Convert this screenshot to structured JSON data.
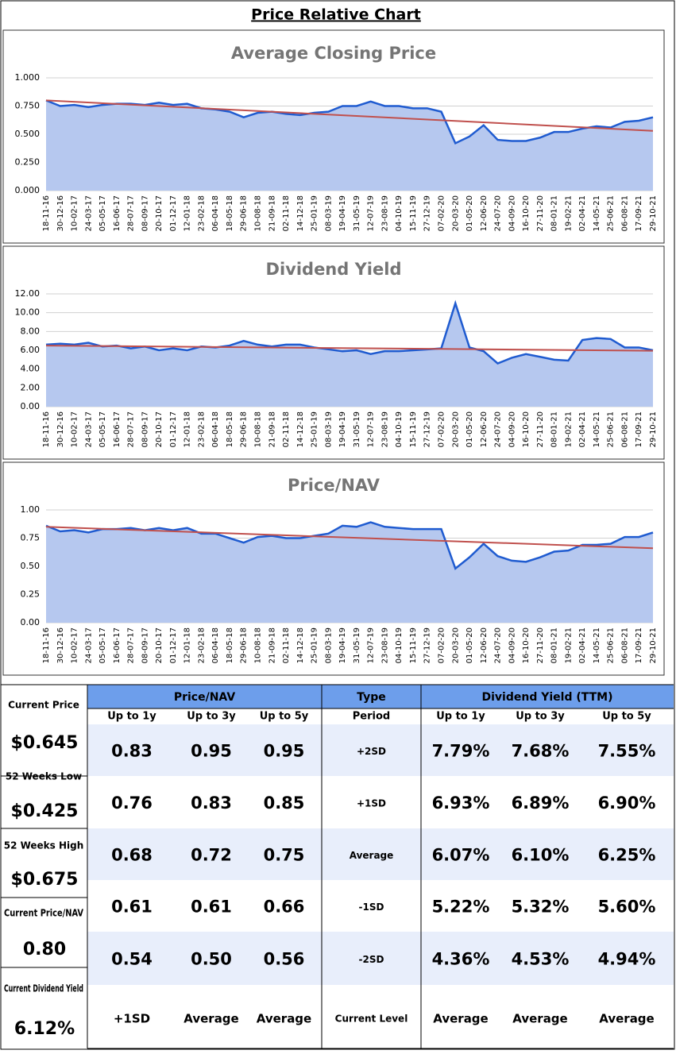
{
  "header": {
    "title": "Price Relative Chart"
  },
  "chart_data": [
    {
      "type": "area",
      "title": "Average Closing Price",
      "categories": [
        "18-11-16",
        "30-12-16",
        "10-02-17",
        "24-03-17",
        "05-05-17",
        "16-06-17",
        "28-07-17",
        "08-09-17",
        "20-10-17",
        "01-12-17",
        "12-01-18",
        "23-02-18",
        "06-04-18",
        "18-05-18",
        "29-06-18",
        "10-08-18",
        "21-09-18",
        "02-11-18",
        "14-12-18",
        "25-01-19",
        "08-03-19",
        "19-04-19",
        "31-05-19",
        "12-07-19",
        "23-08-19",
        "04-10-19",
        "15-11-19",
        "27-12-19",
        "07-02-20",
        "20-03-20",
        "01-05-20",
        "12-06-20",
        "24-07-20",
        "04-09-20",
        "16-10-20",
        "27-11-20",
        "08-01-21",
        "19-02-21",
        "02-04-21",
        "14-05-21",
        "25-06-21",
        "06-08-21",
        "17-09-21",
        "29-10-21"
      ],
      "values": [
        0.8,
        0.75,
        0.76,
        0.74,
        0.76,
        0.77,
        0.77,
        0.76,
        0.78,
        0.76,
        0.77,
        0.73,
        0.72,
        0.7,
        0.65,
        0.69,
        0.7,
        0.68,
        0.67,
        0.69,
        0.7,
        0.75,
        0.75,
        0.79,
        0.75,
        0.75,
        0.73,
        0.73,
        0.7,
        0.42,
        0.48,
        0.58,
        0.45,
        0.44,
        0.44,
        0.47,
        0.52,
        0.52,
        0.55,
        0.57,
        0.56,
        0.61,
        0.62,
        0.65
      ],
      "color": "#1f5bd0",
      "fill": "#b6c8ef",
      "trend": [
        0.8,
        0.53
      ],
      "trend_color": "#c0504d",
      "ylim": [
        0,
        1
      ],
      "yticks": [
        {
          "value": 0,
          "label": "0.000"
        },
        {
          "value": 0.25,
          "label": "0.250"
        },
        {
          "value": 0.5,
          "label": "0.500"
        },
        {
          "value": 0.75,
          "label": "0.750"
        },
        {
          "value": 1,
          "label": "1.000"
        }
      ],
      "grid": true
    },
    {
      "type": "area",
      "title": "Dividend Yield",
      "categories": [
        "18-11-16",
        "30-12-16",
        "10-02-17",
        "24-03-17",
        "05-05-17",
        "16-06-17",
        "28-07-17",
        "08-09-17",
        "20-10-17",
        "01-12-17",
        "12-01-18",
        "23-02-18",
        "06-04-18",
        "18-05-18",
        "29-06-18",
        "10-08-18",
        "21-09-18",
        "02-11-18",
        "14-12-18",
        "25-01-19",
        "08-03-19",
        "19-04-19",
        "31-05-19",
        "12-07-19",
        "23-08-19",
        "04-10-19",
        "15-11-19",
        "27-12-19",
        "07-02-20",
        "20-03-20",
        "01-05-20",
        "12-06-20",
        "24-07-20",
        "04-09-20",
        "16-10-20",
        "27-11-20",
        "08-01-21",
        "19-02-21",
        "02-04-21",
        "14-05-21",
        "25-06-21",
        "06-08-21",
        "17-09-21",
        "29-10-21"
      ],
      "values": [
        6.6,
        6.7,
        6.6,
        6.8,
        6.4,
        6.5,
        6.2,
        6.4,
        6.0,
        6.2,
        6.0,
        6.4,
        6.3,
        6.5,
        7.0,
        6.6,
        6.4,
        6.6,
        6.6,
        6.3,
        6.1,
        5.9,
        6.0,
        5.6,
        5.9,
        5.9,
        6.0,
        6.1,
        6.2,
        11.0,
        6.3,
        5.9,
        4.6,
        5.2,
        5.6,
        5.3,
        5.0,
        4.9,
        7.1,
        7.3,
        7.2,
        6.3,
        6.3,
        6.0
      ],
      "color": "#1f5bd0",
      "fill": "#b6c8ef",
      "trend": [
        6.5,
        5.95
      ],
      "trend_color": "#c0504d",
      "ylim": [
        0,
        12
      ],
      "yticks": [
        {
          "value": 0,
          "label": "0.00"
        },
        {
          "value": 2,
          "label": "2.00"
        },
        {
          "value": 4,
          "label": "4.00"
        },
        {
          "value": 6,
          "label": "6.00"
        },
        {
          "value": 8,
          "label": "8.00"
        },
        {
          "value": 10,
          "label": "10.00"
        },
        {
          "value": 12,
          "label": "12.00"
        }
      ],
      "grid": true
    },
    {
      "type": "area",
      "title": "Price/NAV",
      "categories": [
        "18-11-16",
        "30-12-16",
        "10-02-17",
        "24-03-17",
        "05-05-17",
        "16-06-17",
        "28-07-17",
        "08-09-17",
        "20-10-17",
        "01-12-17",
        "12-01-18",
        "23-02-18",
        "06-04-18",
        "18-05-18",
        "29-06-18",
        "10-08-18",
        "21-09-18",
        "02-11-18",
        "14-12-18",
        "25-01-19",
        "08-03-19",
        "19-04-19",
        "31-05-19",
        "12-07-19",
        "23-08-19",
        "04-10-19",
        "15-11-19",
        "27-12-19",
        "07-02-20",
        "20-03-20",
        "01-05-20",
        "12-06-20",
        "24-07-20",
        "04-09-20",
        "16-10-20",
        "27-11-20",
        "08-01-21",
        "19-02-21",
        "02-04-21",
        "14-05-21",
        "25-06-21",
        "06-08-21",
        "17-09-21",
        "29-10-21"
      ],
      "values": [
        0.86,
        0.81,
        0.82,
        0.8,
        0.83,
        0.83,
        0.84,
        0.82,
        0.84,
        0.82,
        0.84,
        0.79,
        0.79,
        0.75,
        0.71,
        0.76,
        0.77,
        0.75,
        0.75,
        0.77,
        0.79,
        0.86,
        0.85,
        0.89,
        0.85,
        0.84,
        0.83,
        0.83,
        0.83,
        0.48,
        0.58,
        0.7,
        0.59,
        0.55,
        0.54,
        0.58,
        0.63,
        0.64,
        0.69,
        0.69,
        0.7,
        0.76,
        0.76,
        0.8
      ],
      "color": "#1f5bd0",
      "fill": "#b6c8ef",
      "trend": [
        0.85,
        0.66
      ],
      "trend_color": "#c0504d",
      "ylim": [
        0,
        1
      ],
      "yticks": [
        {
          "value": 0,
          "label": "0.00"
        },
        {
          "value": 0.25,
          "label": "0.25"
        },
        {
          "value": 0.5,
          "label": "0.50"
        },
        {
          "value": 0.75,
          "label": "0.75"
        },
        {
          "value": 1,
          "label": "1.00"
        }
      ],
      "grid": true
    }
  ],
  "table": {
    "left": [
      {
        "label": "Current Price",
        "value": "$0.645"
      },
      {
        "label": "52 Weeks Low",
        "value": "$0.425"
      },
      {
        "label": "52 Weeks High",
        "value": "$0.675"
      },
      {
        "label": "Current Price/NAV",
        "value": "0.80"
      },
      {
        "label": "Current Dividend Yield",
        "value": "6.12%"
      }
    ],
    "groups": [
      "Price/NAV",
      "Type",
      "Dividend Yield (TTM)"
    ],
    "columns": [
      "Up to 1y",
      "Up to 3y",
      "Up to 5y",
      "Period",
      "Up to 1y",
      "Up to 3y",
      "Up to 5y"
    ],
    "rows": [
      [
        "0.83",
        "0.95",
        "0.95",
        "+2SD",
        "7.79%",
        "7.68%",
        "7.55%"
      ],
      [
        "0.76",
        "0.83",
        "0.85",
        "+1SD",
        "6.93%",
        "6.89%",
        "6.90%"
      ],
      [
        "0.68",
        "0.72",
        "0.75",
        "Average",
        "6.07%",
        "6.10%",
        "6.25%"
      ],
      [
        "0.61",
        "0.61",
        "0.66",
        "-1SD",
        "5.22%",
        "5.32%",
        "5.60%"
      ],
      [
        "0.54",
        "0.50",
        "0.56",
        "-2SD",
        "4.36%",
        "4.53%",
        "4.94%"
      ]
    ],
    "footer": [
      "+1SD",
      "Average",
      "Average",
      "Current Level",
      "Average",
      "Average",
      "Average"
    ]
  }
}
